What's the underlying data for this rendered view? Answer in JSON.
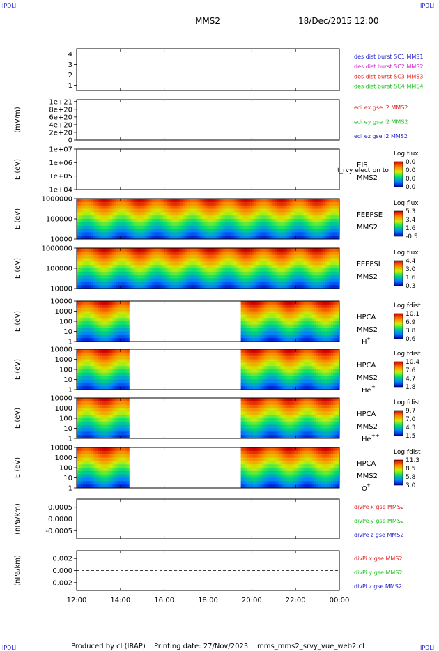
{
  "header": {
    "corner_label": "IPDLI",
    "satellite": "MMS2",
    "datetime": "18/Dec/2015 12:00"
  },
  "footer": {
    "produced_by": "Produced by cl (IRAP)",
    "printing_date": "Printing date: 27/Nov/2023",
    "filename": "mms_mms2_srvy_vue_web2.cl"
  },
  "time_axis": {
    "ticks": [
      "12:00",
      "14:00",
      "16:00",
      "18:00",
      "20:00",
      "22:00",
      "00:00"
    ]
  },
  "colors": {
    "blue": "#2020d0",
    "magenta": "#d020d0",
    "red": "#e02020",
    "green": "#20c020"
  },
  "chart_data": [
    {
      "type": "line",
      "panel": "des-dist-burst",
      "ylabel": "",
      "yticks": [
        "4",
        "3",
        "2",
        "1"
      ],
      "ylim": [
        0.5,
        4.5
      ],
      "series": [
        {
          "name": "des dist burst SC1 MMS1",
          "color": "#2020d0",
          "values": []
        },
        {
          "name": "des dist burst SC2 MMS2",
          "color": "#d020d0",
          "values": []
        },
        {
          "name": "des dist burst SC3 MMS3",
          "color": "#e02020",
          "values": []
        },
        {
          "name": "des dist burst SC4 MMS4",
          "color": "#20c020",
          "values": []
        }
      ]
    },
    {
      "type": "line",
      "panel": "edi-e-field",
      "ylabel": "(mV/m)",
      "yticks": [
        "1e+21",
        "8e+20",
        "6e+20",
        "4e+20",
        "2e+20",
        "0"
      ],
      "ylim": [
        0,
        1.05e+21
      ],
      "series": [
        {
          "name": "edi ex gse l2 MMS2",
          "color": "#e02020",
          "values": []
        },
        {
          "name": "edi ey gse l2 MMS2",
          "color": "#20c020",
          "values": []
        },
        {
          "name": "edi ez gse l2 MMS2",
          "color": "#2020d0",
          "values": []
        }
      ]
    },
    {
      "type": "heatmap",
      "panel": "eis",
      "ylabel": "E (eV)",
      "yticks": [
        "1e+07",
        "1e+06",
        "1e+05",
        "1e+04"
      ],
      "labels": [
        "EIS",
        "MMS2"
      ],
      "overlay_text": "t_rvy electron to",
      "colorbar": {
        "title": "Log flux",
        "ticks": [
          "0.0",
          "0.0",
          "0.0",
          "0.0"
        ]
      },
      "data_coverage": []
    },
    {
      "type": "heatmap",
      "panel": "feeps-e",
      "ylabel": "E (eV)",
      "yticks": [
        "1000000",
        "100000",
        "10000"
      ],
      "labels": [
        "FEEPSE",
        "MMS2"
      ],
      "colorbar": {
        "title": "Log flux",
        "ticks": [
          "5.3",
          "3.4",
          "1.6",
          "-0.5"
        ]
      },
      "data_coverage": [
        [
          12.0,
          24.0
        ]
      ]
    },
    {
      "type": "heatmap",
      "panel": "feeps-i",
      "ylabel": "E (eV)",
      "yticks": [
        "1000000",
        "100000",
        "10000"
      ],
      "labels": [
        "FEEPSI",
        "MMS2"
      ],
      "colorbar": {
        "title": "Log flux",
        "ticks": [
          "4.4",
          "3.0",
          "1.6",
          "0.3"
        ]
      },
      "data_coverage": [
        [
          12.0,
          24.0
        ]
      ]
    },
    {
      "type": "heatmap",
      "panel": "hpca-h",
      "ylabel": "E (eV)",
      "yticks": [
        "10000",
        "1000",
        "100",
        "10",
        "1"
      ],
      "labels": [
        "HPCA",
        "MMS2"
      ],
      "species": "H",
      "species_charge": "+",
      "colorbar": {
        "title": "Log fdist",
        "ticks": [
          "10.1",
          "6.9",
          "3.8",
          "0.6"
        ]
      },
      "data_coverage": [
        [
          12.0,
          14.4
        ],
        [
          19.5,
          24.0
        ]
      ]
    },
    {
      "type": "heatmap",
      "panel": "hpca-he1",
      "ylabel": "E (eV)",
      "yticks": [
        "10000",
        "1000",
        "100",
        "10",
        "1"
      ],
      "labels": [
        "HPCA",
        "MMS2"
      ],
      "species": "He",
      "species_charge": "+",
      "colorbar": {
        "title": "Log fdist",
        "ticks": [
          "10.4",
          "7.6",
          "4.7",
          "1.8"
        ]
      },
      "data_coverage": [
        [
          12.0,
          14.4
        ],
        [
          19.5,
          24.0
        ]
      ]
    },
    {
      "type": "heatmap",
      "panel": "hpca-he2",
      "ylabel": "E (eV)",
      "yticks": [
        "10000",
        "1000",
        "100",
        "10",
        "1"
      ],
      "labels": [
        "HPCA",
        "MMS2"
      ],
      "species": "He",
      "species_charge": "++",
      "colorbar": {
        "title": "Log fdist",
        "ticks": [
          "9.7",
          "7.0",
          "4.3",
          "1.5"
        ]
      },
      "data_coverage": [
        [
          12.0,
          14.4
        ],
        [
          19.5,
          24.0
        ]
      ]
    },
    {
      "type": "heatmap",
      "panel": "hpca-o",
      "ylabel": "E (eV)",
      "yticks": [
        "10000",
        "1000",
        "100",
        "10",
        "1"
      ],
      "labels": [
        "HPCA",
        "MMS2"
      ],
      "species": "O",
      "species_charge": "+",
      "colorbar": {
        "title": "Log fdist",
        "ticks": [
          "11.3",
          "8.5",
          "5.8",
          "3.0"
        ]
      },
      "data_coverage": [
        [
          12.0,
          14.4
        ],
        [
          19.5,
          24.0
        ]
      ]
    },
    {
      "type": "line",
      "panel": "divpe",
      "ylabel": "(nPa/km)",
      "yticks": [
        "0.0005",
        "0.0000",
        "-0.0005"
      ],
      "ylim": [
        -0.00085,
        0.00085
      ],
      "zero_line": true,
      "series": [
        {
          "name": "divPe x gse MMS2",
          "color": "#e02020",
          "values": []
        },
        {
          "name": "divPe y gse MMS2",
          "color": "#20c020",
          "values": []
        },
        {
          "name": "divPe z gse MMS2",
          "color": "#2020d0",
          "values": []
        }
      ]
    },
    {
      "type": "line",
      "panel": "divpi",
      "ylabel": "(nPa/km)",
      "yticks": [
        "0.002",
        "0.000",
        "-0.002"
      ],
      "ylim": [
        -0.0033,
        0.0033
      ],
      "zero_line": true,
      "series": [
        {
          "name": "divPi x gse MMS2",
          "color": "#e02020",
          "values": []
        },
        {
          "name": "divPi y gse MMS2",
          "color": "#20c020",
          "values": []
        },
        {
          "name": "divPi z gse MMS2",
          "color": "#2020d0",
          "values": []
        }
      ]
    }
  ]
}
